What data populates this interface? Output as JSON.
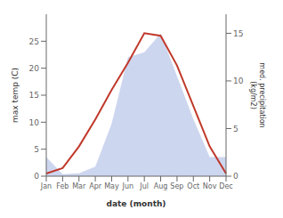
{
  "chart_data": {
    "type": "line",
    "categories": [
      "Jan",
      "Feb",
      "Mar",
      "Apr",
      "May",
      "Jun",
      "Jul",
      "Aug",
      "Sep",
      "Oct",
      "Nov",
      "Dec"
    ],
    "series": [
      {
        "type": "area",
        "axis": "y2",
        "color": "#b8c4e8",
        "values": [
          2.0,
          0.2,
          0.3,
          1.0,
          5.5,
          12.5,
          13.0,
          15.0,
          10.5,
          6.0,
          2.0,
          2.0
        ]
      },
      {
        "type": "line",
        "color": "#c0392b",
        "values": [
          0.5,
          1.5,
          5.5,
          10.5,
          16.0,
          21.0,
          26.5,
          26.0,
          20.5,
          13.0,
          5.5,
          0.5
        ]
      }
    ],
    "xlabel": "date (month)",
    "ylabel": "max temp (C)",
    "y2label": "med. precipitation\n(kg/m2)",
    "ylim": [
      0,
      30
    ],
    "yticks": [
      0,
      5,
      10,
      15,
      20,
      25
    ],
    "y2lim": [
      0,
      17
    ],
    "y2ticks": [
      0,
      5,
      10,
      15
    ],
    "grid": false
  }
}
